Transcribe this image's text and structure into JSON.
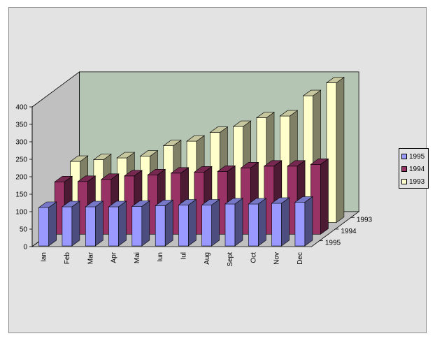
{
  "chart_data": {
    "type": "bar",
    "subtype": "3d-column",
    "title": "",
    "xlabel": "",
    "ylabel": "",
    "ylim": [
      0,
      400
    ],
    "yticks": [
      0,
      50,
      100,
      150,
      200,
      250,
      300,
      350,
      400
    ],
    "grid": false,
    "legend_position": "right",
    "categories": [
      "Ian",
      "Feb",
      "Mar",
      "Apr",
      "Mai",
      "Iun",
      "Iul",
      "Aug",
      "Sept",
      "Oct",
      "Nov",
      "Dec"
    ],
    "series": [
      {
        "name": "1995",
        "color": "#9999ff",
        "values": [
          110,
          112,
          112,
          112,
          113,
          115,
          117,
          117,
          120,
          120,
          122,
          125
        ]
      },
      {
        "name": "1994",
        "color": "#993366",
        "values": [
          150,
          151,
          157,
          167,
          170,
          175,
          178,
          180,
          190,
          195,
          195,
          200
        ]
      },
      {
        "name": "1993",
        "color": "#ffffcc",
        "values": [
          175,
          180,
          185,
          190,
          220,
          233,
          258,
          275,
          300,
          305,
          363,
          400
        ]
      }
    ],
    "wall_color": "#b4c5b4"
  }
}
